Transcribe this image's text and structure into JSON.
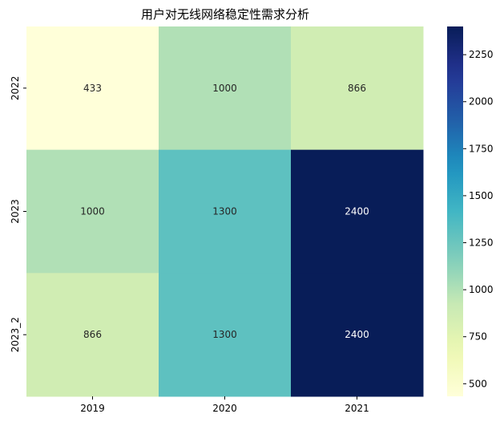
{
  "chart_data": {
    "type": "heatmap",
    "title": "用户对无线网络稳定性需求分析",
    "xlabel": "",
    "ylabel": "",
    "x_categories": [
      "2019",
      "2020",
      "2021"
    ],
    "y_categories": [
      "2022",
      "2023",
      "2023_2"
    ],
    "values": [
      [
        433,
        1000,
        866
      ],
      [
        1000,
        1300,
        2400
      ],
      [
        866,
        1300,
        2400
      ]
    ],
    "annotations": true,
    "colormap": "YlGnBu",
    "colorbar": {
      "min": 433,
      "max": 2400,
      "ticks": [
        500,
        750,
        1000,
        1250,
        1500,
        1750,
        2000,
        2250
      ]
    }
  }
}
